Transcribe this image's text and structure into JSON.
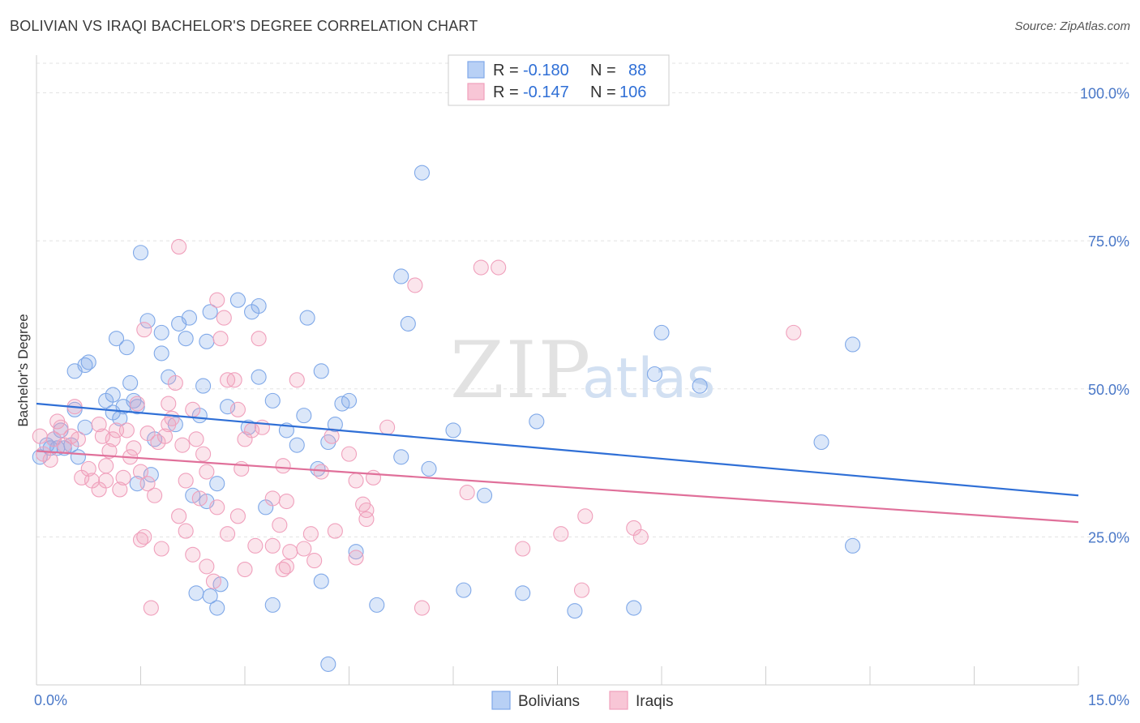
{
  "title": "BOLIVIAN VS IRAQI BACHELOR'S DEGREE CORRELATION CHART",
  "source": "Source: ZipAtlas.com",
  "watermark": {
    "zip": "ZIP",
    "atlas": "atlas"
  },
  "legend": {
    "rows": [
      {
        "r_label": "R =",
        "r_value": "-0.180",
        "n_label": "N =",
        "n_value": "88",
        "color": "#7fa8e8"
      },
      {
        "r_label": "R =",
        "r_value": "-0.147",
        "n_label": "N =",
        "n_value": "106",
        "color": "#f0a0bc"
      }
    ]
  },
  "chart_data": {
    "type": "scatter",
    "title": "BOLIVIAN VS IRAQI BACHELOR'S DEGREE CORRELATION CHART",
    "xlabel": "",
    "ylabel": "Bachelor's Degree",
    "xlim": [
      0,
      15
    ],
    "ylim": [
      0,
      105
    ],
    "x_tick_labels": [
      "0.0%",
      "15.0%"
    ],
    "y_tick_labels": [
      "25.0%",
      "50.0%",
      "75.0%",
      "100.0%"
    ],
    "y_ticks": [
      25,
      50,
      75,
      100
    ],
    "grid": true,
    "legend_position": "bottom-center",
    "series": [
      {
        "name": "Bolivians",
        "color": "#7fa8e8",
        "line_color": "#2f6fd6",
        "trend": {
          "x": [
            0,
            15
          ],
          "y": [
            47.5,
            32.0
          ]
        },
        "points": [
          [
            0.05,
            38.5
          ],
          [
            0.15,
            40.5
          ],
          [
            0.2,
            40
          ],
          [
            0.25,
            41.5
          ],
          [
            0.3,
            40
          ],
          [
            0.35,
            43
          ],
          [
            0.4,
            40
          ],
          [
            0.5,
            40.5
          ],
          [
            0.55,
            46.5
          ],
          [
            0.6,
            38.5
          ],
          [
            0.55,
            53
          ],
          [
            0.7,
            54
          ],
          [
            0.75,
            54.5
          ],
          [
            1.0,
            48
          ],
          [
            1.1,
            46
          ],
          [
            1.2,
            45
          ],
          [
            1.1,
            49
          ],
          [
            1.25,
            47
          ],
          [
            1.35,
            51
          ],
          [
            1.3,
            57
          ],
          [
            1.15,
            58.5
          ],
          [
            1.5,
            73
          ],
          [
            1.6,
            61.5
          ],
          [
            1.4,
            48
          ],
          [
            1.45,
            47
          ],
          [
            1.7,
            41.5
          ],
          [
            1.65,
            35.5
          ],
          [
            1.45,
            34
          ],
          [
            1.8,
            56
          ],
          [
            1.9,
            52
          ],
          [
            1.8,
            59.5
          ],
          [
            2.0,
            44
          ],
          [
            2.05,
            61
          ],
          [
            2.2,
            62
          ],
          [
            2.15,
            58.5
          ],
          [
            2.45,
            58
          ],
          [
            2.5,
            63
          ],
          [
            2.4,
            50.5
          ],
          [
            2.35,
            45.5
          ],
          [
            2.25,
            32
          ],
          [
            2.45,
            31
          ],
          [
            2.6,
            34
          ],
          [
            2.75,
            47
          ],
          [
            2.9,
            65
          ],
          [
            3.1,
            63
          ],
          [
            3.2,
            64
          ],
          [
            3.2,
            52
          ],
          [
            3.4,
            48
          ],
          [
            3.05,
            43.5
          ],
          [
            3.3,
            30
          ],
          [
            3.6,
            43
          ],
          [
            3.75,
            40.5
          ],
          [
            3.9,
            62
          ],
          [
            3.85,
            45.5
          ],
          [
            4.1,
            53
          ],
          [
            4.3,
            44
          ],
          [
            4.2,
            41
          ],
          [
            4.4,
            47.5
          ],
          [
            4.5,
            48
          ],
          [
            4.05,
            36.5
          ],
          [
            5.25,
            69
          ],
          [
            5.35,
            61
          ],
          [
            5.25,
            38.5
          ],
          [
            5.55,
            86.5
          ],
          [
            5.65,
            36.5
          ],
          [
            6.0,
            43
          ],
          [
            6.45,
            32
          ],
          [
            7.2,
            44.5
          ],
          [
            8.9,
            52.5
          ],
          [
            9.0,
            59.5
          ],
          [
            9.55,
            50.5
          ],
          [
            11.3,
            41
          ],
          [
            11.75,
            57.5
          ],
          [
            11.75,
            23.5
          ],
          [
            2.3,
            15.5
          ],
          [
            2.65,
            17
          ],
          [
            2.6,
            13
          ],
          [
            3.4,
            13.5
          ],
          [
            4.1,
            17.5
          ],
          [
            4.6,
            22.5
          ],
          [
            4.9,
            13.5
          ],
          [
            6.15,
            16
          ],
          [
            7.0,
            15.5
          ],
          [
            7.75,
            12.5
          ],
          [
            8.6,
            13
          ],
          [
            4.2,
            3.5
          ],
          [
            2.5,
            15
          ],
          [
            0.7,
            43.5
          ]
        ]
      },
      {
        "name": "Iraqis",
        "color": "#f0a0bc",
        "line_color": "#e0709a",
        "trend": {
          "x": [
            0,
            15
          ],
          "y": [
            39.5,
            27.5
          ]
        },
        "points": [
          [
            0.05,
            42
          ],
          [
            0.1,
            39
          ],
          [
            0.2,
            38
          ],
          [
            0.25,
            41.5
          ],
          [
            0.3,
            44.5
          ],
          [
            0.35,
            43.5
          ],
          [
            0.4,
            40.5
          ],
          [
            0.5,
            42
          ],
          [
            0.6,
            41.5
          ],
          [
            0.55,
            47
          ],
          [
            0.65,
            35
          ],
          [
            0.75,
            36.5
          ],
          [
            0.8,
            34.5
          ],
          [
            0.9,
            44
          ],
          [
            0.95,
            42
          ],
          [
            1.0,
            37
          ],
          [
            1.05,
            39.5
          ],
          [
            1.1,
            41.5
          ],
          [
            1.15,
            43
          ],
          [
            1.0,
            34.5
          ],
          [
            1.2,
            33
          ],
          [
            1.3,
            43
          ],
          [
            1.35,
            38.5
          ],
          [
            1.4,
            40
          ],
          [
            1.45,
            47.5
          ],
          [
            1.55,
            60
          ],
          [
            1.6,
            42.5
          ],
          [
            1.5,
            36
          ],
          [
            1.6,
            34
          ],
          [
            1.7,
            32
          ],
          [
            1.75,
            41
          ],
          [
            1.85,
            42
          ],
          [
            1.9,
            44
          ],
          [
            1.95,
            45
          ],
          [
            2.0,
            51
          ],
          [
            1.9,
            47.5
          ],
          [
            2.05,
            74
          ],
          [
            2.1,
            40.5
          ],
          [
            2.15,
            34.5
          ],
          [
            2.25,
            46.5
          ],
          [
            2.3,
            41.5
          ],
          [
            2.4,
            39
          ],
          [
            2.45,
            36
          ],
          [
            2.35,
            31.5
          ],
          [
            2.6,
            65
          ],
          [
            2.65,
            58.5
          ],
          [
            2.7,
            62
          ],
          [
            2.75,
            51.5
          ],
          [
            2.85,
            51.5
          ],
          [
            2.9,
            46.5
          ],
          [
            3.0,
            41.5
          ],
          [
            2.95,
            36.5
          ],
          [
            3.1,
            43
          ],
          [
            3.2,
            58.5
          ],
          [
            3.25,
            43.5
          ],
          [
            3.4,
            31.5
          ],
          [
            3.5,
            27
          ],
          [
            3.55,
            37
          ],
          [
            3.6,
            31
          ],
          [
            3.75,
            51.5
          ],
          [
            3.85,
            23
          ],
          [
            3.95,
            25.5
          ],
          [
            4.1,
            36
          ],
          [
            4.25,
            42
          ],
          [
            4.5,
            39
          ],
          [
            4.6,
            34.5
          ],
          [
            4.7,
            30.5
          ],
          [
            4.75,
            29.5
          ],
          [
            4.85,
            35
          ],
          [
            5.05,
            43.5
          ],
          [
            5.45,
            67.5
          ],
          [
            5.55,
            13
          ],
          [
            6.2,
            32.5
          ],
          [
            6.4,
            70.5
          ],
          [
            6.65,
            70.5
          ],
          [
            7.0,
            23
          ],
          [
            7.55,
            25.5
          ],
          [
            7.9,
            28.5
          ],
          [
            7.85,
            16
          ],
          [
            8.6,
            26.5
          ],
          [
            8.7,
            25
          ],
          [
            10.9,
            59.5
          ],
          [
            1.5,
            24.5
          ],
          [
            1.65,
            13
          ],
          [
            1.8,
            23
          ],
          [
            2.05,
            28.5
          ],
          [
            2.15,
            26
          ],
          [
            2.25,
            22
          ],
          [
            2.45,
            20
          ],
          [
            2.55,
            17.5
          ],
          [
            2.75,
            25.5
          ],
          [
            2.9,
            28.5
          ],
          [
            3.0,
            19.5
          ],
          [
            3.15,
            23.5
          ],
          [
            3.4,
            23.5
          ],
          [
            3.55,
            19.5
          ],
          [
            3.65,
            22.5
          ],
          [
            3.6,
            20
          ],
          [
            4.0,
            21
          ],
          [
            4.3,
            26
          ],
          [
            4.6,
            21.5
          ],
          [
            1.55,
            25
          ],
          [
            0.9,
            33
          ],
          [
            1.25,
            35
          ],
          [
            2.6,
            30
          ],
          [
            4.75,
            28
          ]
        ]
      }
    ]
  }
}
